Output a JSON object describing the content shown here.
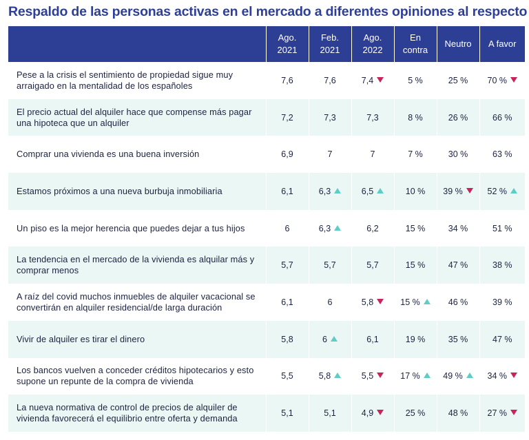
{
  "title": "Respaldo de las personas activas en el mercado a diferentes opiniones al respecto",
  "colors": {
    "header_bg": "#2d3f95",
    "title": "#2e3f9a",
    "stripe": "#eaf7f5",
    "up": "#5fcdc4",
    "down": "#c8245c"
  },
  "headers": [
    {
      "line1": "",
      "line2": ""
    },
    {
      "line1": "Ago.",
      "line2": "2021"
    },
    {
      "line1": "Feb.",
      "line2": "2021"
    },
    {
      "line1": "Ago.",
      "line2": "2022"
    },
    {
      "line1": "En contra",
      "line2": ""
    },
    {
      "line1": "Neutro",
      "line2": ""
    },
    {
      "line1": "A favor",
      "line2": ""
    }
  ],
  "rows": [
    {
      "statement": "Pese a la crisis el sentimiento de propiedad sigue muy arraigado en la mentalidad de los españoles",
      "cells": [
        {
          "v": "7,6",
          "t": "none"
        },
        {
          "v": "7,6",
          "t": "none"
        },
        {
          "v": "7,4",
          "t": "down"
        },
        {
          "v": "5 %",
          "t": "none"
        },
        {
          "v": "25 %",
          "t": "none"
        },
        {
          "v": "70 %",
          "t": "down"
        }
      ]
    },
    {
      "statement": "El precio actual del alquiler hace que compense más pagar una hipoteca que un alquiler",
      "cells": [
        {
          "v": "7,2",
          "t": "none"
        },
        {
          "v": "7,3",
          "t": "none"
        },
        {
          "v": "7,3",
          "t": "none"
        },
        {
          "v": "8 %",
          "t": "none"
        },
        {
          "v": "26 %",
          "t": "none"
        },
        {
          "v": "66 %",
          "t": "none"
        }
      ]
    },
    {
      "statement": "Comprar una vivienda es una buena inversión",
      "cells": [
        {
          "v": "6,9",
          "t": "none"
        },
        {
          "v": "7",
          "t": "none"
        },
        {
          "v": "7",
          "t": "none"
        },
        {
          "v": "7 %",
          "t": "none"
        },
        {
          "v": "30 %",
          "t": "none"
        },
        {
          "v": "63 %",
          "t": "none"
        }
      ]
    },
    {
      "statement": "Estamos próximos a una nueva burbuja inmobiliaria",
      "cells": [
        {
          "v": "6,1",
          "t": "none"
        },
        {
          "v": "6,3",
          "t": "up"
        },
        {
          "v": "6,5",
          "t": "up"
        },
        {
          "v": "10 %",
          "t": "none"
        },
        {
          "v": "39 %",
          "t": "down"
        },
        {
          "v": "52 %",
          "t": "up"
        }
      ]
    },
    {
      "statement": "Un piso es la mejor herencia que puedes dejar a tus hijos",
      "cells": [
        {
          "v": "6",
          "t": "none"
        },
        {
          "v": "6,3",
          "t": "up"
        },
        {
          "v": "6,2",
          "t": "none"
        },
        {
          "v": "15 %",
          "t": "none"
        },
        {
          "v": "34 %",
          "t": "none"
        },
        {
          "v": "51 %",
          "t": "none"
        }
      ]
    },
    {
      "statement": "La tendencia en el mercado de la vivienda es alquilar más y comprar menos",
      "cells": [
        {
          "v": "5,7",
          "t": "none"
        },
        {
          "v": "5,7",
          "t": "none"
        },
        {
          "v": "5,7",
          "t": "none"
        },
        {
          "v": "15 %",
          "t": "none"
        },
        {
          "v": "47 %",
          "t": "none"
        },
        {
          "v": "38 %",
          "t": "none"
        }
      ]
    },
    {
      "statement": "A raíz del covid muchos inmuebles de alquiler vacacional se convertirán en alquiler residencial/de larga duración",
      "cells": [
        {
          "v": "6,1",
          "t": "none"
        },
        {
          "v": "6",
          "t": "none"
        },
        {
          "v": "5,8",
          "t": "down"
        },
        {
          "v": "15 %",
          "t": "up"
        },
        {
          "v": "46 %",
          "t": "none"
        },
        {
          "v": "39 %",
          "t": "none"
        }
      ]
    },
    {
      "statement": "Vivir de alquiler es tirar el dinero",
      "cells": [
        {
          "v": "5,8",
          "t": "none"
        },
        {
          "v": "6",
          "t": "up"
        },
        {
          "v": "6,1",
          "t": "none"
        },
        {
          "v": "19 %",
          "t": "none"
        },
        {
          "v": "35 %",
          "t": "none"
        },
        {
          "v": "47 %",
          "t": "none"
        }
      ]
    },
    {
      "statement": "Los bancos vuelven a conceder créditos hipotecarios y esto supone un repunte de la compra de vivienda",
      "cells": [
        {
          "v": "5,5",
          "t": "none"
        },
        {
          "v": "5,8",
          "t": "up"
        },
        {
          "v": "5,5",
          "t": "down"
        },
        {
          "v": "17 %",
          "t": "up"
        },
        {
          "v": "49 %",
          "t": "up"
        },
        {
          "v": "34 %",
          "t": "down"
        }
      ]
    },
    {
      "statement": "La nueva normativa de control de precios de alquiler de vivienda favorecerá el equilibrio entre oferta y demanda",
      "cells": [
        {
          "v": "5,1",
          "t": "none"
        },
        {
          "v": "5,1",
          "t": "none"
        },
        {
          "v": "4,9",
          "t": "down"
        },
        {
          "v": "25 %",
          "t": "none"
        },
        {
          "v": "48 %",
          "t": "none"
        },
        {
          "v": "27 %",
          "t": "down"
        }
      ]
    }
  ]
}
